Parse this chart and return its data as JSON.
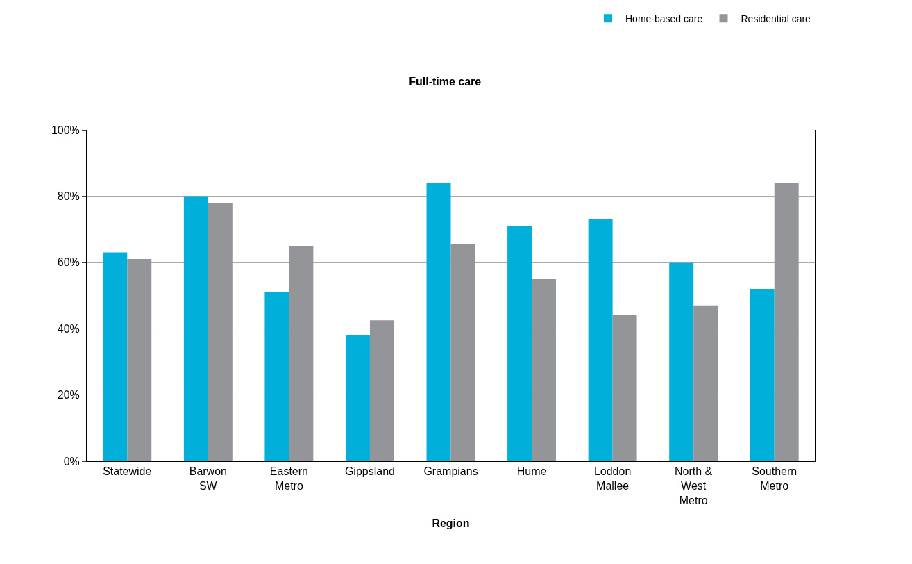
{
  "chart_data": {
    "type": "bar",
    "title": "Full-time care",
    "xlabel": "Region",
    "categories": [
      "Statewide",
      "Barwon\nSW",
      "Eastern\nMetro",
      "Gippsland",
      "Grampians",
      "Hume",
      "Loddon\nMallee",
      "North &\nWest\nMetro",
      "Southern\nMetro"
    ],
    "series": [
      {
        "name": "Home-based care",
        "color": "#00b0da",
        "values": [
          63,
          80,
          51,
          38,
          84,
          71,
          73,
          60,
          52
        ]
      },
      {
        "name": "Residential care",
        "color": "#939598",
        "values": [
          61,
          78,
          65,
          42.5,
          65.5,
          55,
          44,
          47,
          84
        ]
      }
    ],
    "ylim": [
      0,
      100
    ],
    "yticks": [
      {
        "value": 0,
        "label": "0%"
      },
      {
        "value": 20,
        "label": "20%"
      },
      {
        "value": 40,
        "label": "40%"
      },
      {
        "value": 60,
        "label": "60%"
      },
      {
        "value": 80,
        "label": "80%"
      },
      {
        "value": 100,
        "label": "100%"
      }
    ],
    "grid": "y",
    "legend": "top right"
  }
}
